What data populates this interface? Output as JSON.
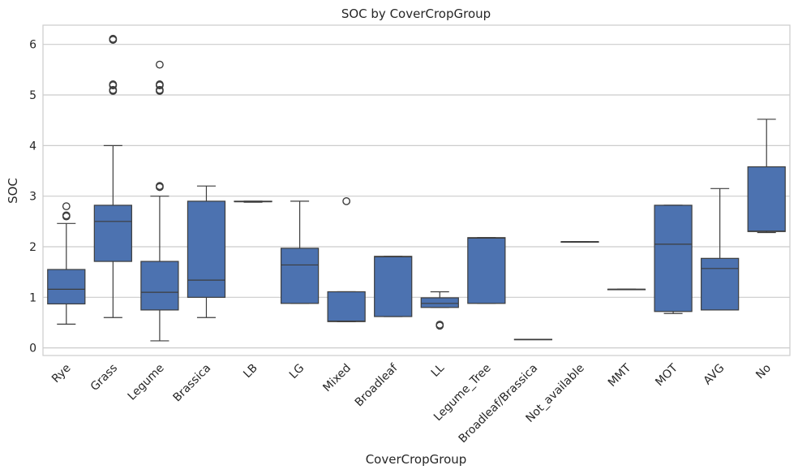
{
  "chart_data": {
    "type": "box",
    "title": "SOC by CoverCropGroup",
    "xlabel": "CoverCropGroup",
    "ylabel": "SOC",
    "ylim": [
      -0.15,
      6.38
    ],
    "yticks": [
      0,
      1,
      2,
      3,
      4,
      5,
      6
    ],
    "grid": true,
    "box_color": "#4c72b0",
    "line_color": "#3d3d3d",
    "categories": [
      "Rye",
      "Grass",
      "Legume",
      "Brassica",
      "LB",
      "LG",
      "Mixed",
      "Broadleaf",
      "LL",
      "Legume_Tree",
      "Broadleaf/Brassica",
      "Not_available",
      "MMT",
      "MOT",
      "AVG",
      "No"
    ],
    "boxes": [
      {
        "category": "Rye",
        "whisker_low": 0.47,
        "q1": 0.87,
        "median": 1.16,
        "q3": 1.55,
        "whisker_high": 2.46,
        "outliers": [
          2.6,
          2.62,
          2.8
        ]
      },
      {
        "category": "Grass",
        "whisker_low": 0.6,
        "q1": 1.71,
        "median": 2.5,
        "q3": 2.82,
        "whisker_high": 4.0,
        "outliers": [
          5.08,
          5.1,
          5.19,
          5.21,
          6.09,
          6.11
        ]
      },
      {
        "category": "Legume",
        "whisker_low": 0.14,
        "q1": 0.75,
        "median": 1.1,
        "q3": 1.71,
        "whisker_high": 3.0,
        "outliers": [
          3.18,
          3.2,
          5.08,
          5.1,
          5.19,
          5.21,
          5.6
        ]
      },
      {
        "category": "Brassica",
        "whisker_low": 0.6,
        "q1": 1.0,
        "median": 1.34,
        "q3": 2.9,
        "whisker_high": 3.2,
        "outliers": []
      },
      {
        "category": "LB",
        "whisker_low": 2.88,
        "q1": 2.89,
        "median": 2.89,
        "q3": 2.9,
        "whisker_high": 2.9,
        "outliers": []
      },
      {
        "category": "LG",
        "whisker_low": 0.88,
        "q1": 0.88,
        "median": 1.64,
        "q3": 1.97,
        "whisker_high": 2.9,
        "outliers": []
      },
      {
        "category": "Mixed",
        "whisker_low": 0.52,
        "q1": 0.52,
        "median": 0.53,
        "q3": 1.11,
        "whisker_high": 1.11,
        "outliers": [
          2.9
        ]
      },
      {
        "category": "Broadleaf",
        "whisker_low": 0.62,
        "q1": 0.62,
        "median": 1.8,
        "q3": 1.81,
        "whisker_high": 1.81,
        "outliers": []
      },
      {
        "category": "LL",
        "whisker_low": 0.8,
        "q1": 0.8,
        "median": 0.88,
        "q3": 0.99,
        "whisker_high": 1.11,
        "outliers": [
          0.44,
          0.46
        ]
      },
      {
        "category": "Legume_Tree",
        "whisker_low": 0.88,
        "q1": 0.88,
        "median": 2.17,
        "q3": 2.18,
        "whisker_high": 2.18,
        "outliers": []
      },
      {
        "category": "Broadleaf/Brassica",
        "whisker_low": 0.17,
        "q1": 0.17,
        "median": 0.17,
        "q3": 0.17,
        "whisker_high": 0.17,
        "outliers": []
      },
      {
        "category": "Not_available",
        "whisker_low": 2.09,
        "q1": 2.09,
        "median": 2.1,
        "q3": 2.1,
        "whisker_high": 2.1,
        "outliers": []
      },
      {
        "category": "MMT",
        "whisker_low": 1.16,
        "q1": 1.16,
        "median": 1.16,
        "q3": 1.16,
        "whisker_high": 1.16,
        "outliers": []
      },
      {
        "category": "MOT",
        "whisker_low": 0.68,
        "q1": 0.72,
        "median": 2.05,
        "q3": 2.82,
        "whisker_high": 2.82,
        "outliers": []
      },
      {
        "category": "AVG",
        "whisker_low": 0.75,
        "q1": 0.75,
        "median": 1.57,
        "q3": 1.77,
        "whisker_high": 3.15,
        "outliers": []
      },
      {
        "category": "No",
        "whisker_low": 2.28,
        "q1": 2.3,
        "median": 2.31,
        "q3": 3.58,
        "whisker_high": 4.52,
        "outliers": []
      }
    ]
  }
}
